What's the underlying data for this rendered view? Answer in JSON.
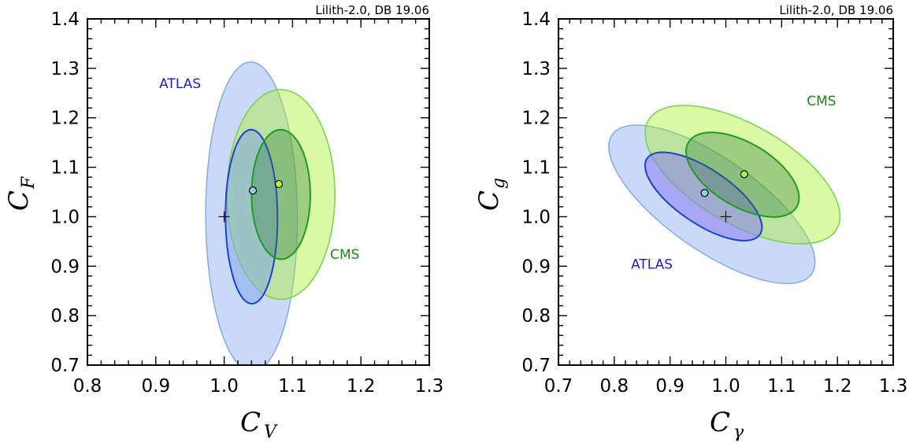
{
  "chart_data": [
    {
      "type": "contour",
      "header": "Lilith-2.0, DB 19.06",
      "xlabel": "C",
      "xlabel_sub": "V",
      "ylabel": "C",
      "ylabel_sub": "F",
      "xlim": [
        0.8,
        1.3
      ],
      "ylim": [
        0.7,
        1.4
      ],
      "xticks": [
        "0.8",
        "0.9",
        "1.0",
        "1.1",
        "1.2",
        "1.3"
      ],
      "yticks": [
        "0.7",
        "0.8",
        "0.9",
        "1.0",
        "1.1",
        "1.2",
        "1.3",
        "1.4"
      ],
      "colors": {
        "atlas_fill": "#7ea6ea",
        "atlas_line": "#1f3fd0",
        "cms_fill": "#a9ee2a",
        "cms_line": "#1f9d1f",
        "best_atlas": "#8fd0f7",
        "best_cms": "#b6f03a"
      },
      "series": [
        {
          "name": "ATLAS",
          "label_pos": [
            0.905,
            1.26
          ],
          "best_fit": [
            1.042,
            1.053
          ],
          "ellipses": [
            {
              "level": "95%",
              "cx": 1.04,
              "cy": 1.0,
              "rx": 0.067,
              "ry": 0.313,
              "angle": 0.3
            },
            {
              "level": "68%",
              "cx": 1.04,
              "cy": 1.0,
              "rx": 0.038,
              "ry": 0.176,
              "angle": 0.3
            }
          ]
        },
        {
          "name": "CMS",
          "label_pos": [
            1.155,
            0.915
          ],
          "best_fit": [
            1.08,
            1.066
          ],
          "ellipses": [
            {
              "level": "95%",
              "cx": 1.083,
              "cy": 1.045,
              "rx": 0.079,
              "ry": 0.212,
              "angle": 0.15
            },
            {
              "level": "68%",
              "cx": 1.083,
              "cy": 1.045,
              "rx": 0.043,
              "ry": 0.131,
              "angle": 0.22
            }
          ]
        }
      ],
      "sm_point": [
        1.0,
        1.0
      ]
    },
    {
      "type": "contour",
      "header": "Lilith-2.0, DB 19.06",
      "xlabel": "C",
      "xlabel_sub": "γ",
      "ylabel": "C",
      "ylabel_sub": "g",
      "xlim": [
        0.7,
        1.3
      ],
      "ylim": [
        0.7,
        1.4
      ],
      "xticks": [
        "0.7",
        "0.8",
        "0.9",
        "1.0",
        "1.1",
        "1.2",
        "1.3"
      ],
      "yticks": [
        "0.7",
        "0.8",
        "0.9",
        "1.0",
        "1.1",
        "1.2",
        "1.3",
        "1.4"
      ],
      "colors": {
        "atlas_fill": "#7ea6ea",
        "atlas_line": "#1f3fd0",
        "atlas_inner_fill": "#8d7df0",
        "cms_fill": "#a9ee2a",
        "cms_line": "#1f9d1f",
        "best_atlas": "#8fd0f7",
        "best_cms": "#b6f03a"
      },
      "series": [
        {
          "name": "ATLAS",
          "label_pos": [
            0.83,
            0.895
          ],
          "best_fit": [
            0.962,
            1.048
          ],
          "ellipses": [
            {
              "level": "95%",
              "cx": 0.975,
              "cy": 1.025,
              "rx": 0.218,
              "ry": 0.093,
              "angle": -35
            },
            {
              "level": "68%",
              "cx": 0.96,
              "cy": 1.041,
              "rx": 0.122,
              "ry": 0.055,
              "angle": -34
            }
          ]
        },
        {
          "name": "CMS",
          "label_pos": [
            1.145,
            1.225
          ],
          "best_fit": [
            1.033,
            1.086
          ],
          "ellipses": [
            {
              "level": "95%",
              "cx": 1.03,
              "cy": 1.085,
              "rx": 0.195,
              "ry": 0.1,
              "angle": -30
            },
            {
              "level": "68%",
              "cx": 1.03,
              "cy": 1.085,
              "rx": 0.113,
              "ry": 0.064,
              "angle": -31
            }
          ]
        }
      ],
      "sm_point": [
        1.0,
        1.0
      ]
    }
  ]
}
